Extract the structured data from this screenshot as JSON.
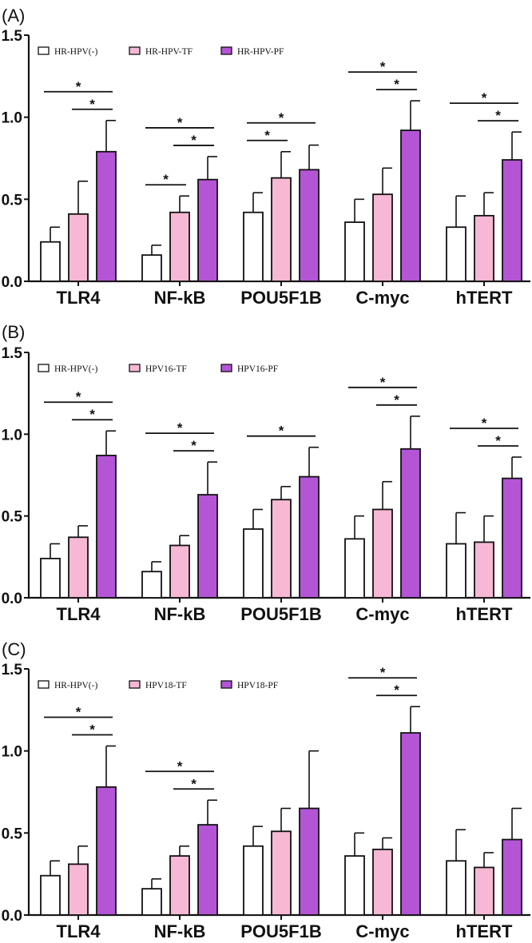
{
  "colors": {
    "bar_fills": [
      "#ffffff",
      "#f6b8d4",
      "#b455d6"
    ],
    "stroke": "#111111"
  },
  "chart_data": [
    {
      "type": "bar",
      "panel_label": "(A)",
      "categories": [
        "TLR4",
        "NF-kB",
        "POU5F1B",
        "C-myc",
        "hTERT"
      ],
      "ylim": [
        0,
        1.5
      ],
      "yticks": [
        "0.0",
        "0.5",
        "1.0",
        "1.5"
      ],
      "legend_position": "top",
      "series": [
        {
          "name": "HR-HPV(-)",
          "values": [
            0.24,
            0.16,
            0.42,
            0.36,
            0.33
          ],
          "errors": [
            0.09,
            0.06,
            0.12,
            0.14,
            0.19
          ]
        },
        {
          "name": "HR-HPV-TF",
          "values": [
            0.41,
            0.42,
            0.63,
            0.53,
            0.4
          ],
          "errors": [
            0.2,
            0.1,
            0.16,
            0.16,
            0.14
          ]
        },
        {
          "name": "HR-HPV-PF",
          "values": [
            0.79,
            0.62,
            0.68,
            0.92,
            0.74
          ],
          "errors": [
            0.19,
            0.14,
            0.15,
            0.18,
            0.17
          ]
        }
      ],
      "significance": [
        {
          "category": 0,
          "from": 0,
          "to": 2,
          "label": "*"
        },
        {
          "category": 0,
          "from": 1,
          "to": 2,
          "label": "*"
        },
        {
          "category": 1,
          "from": 0,
          "to": 2,
          "label": "*"
        },
        {
          "category": 1,
          "from": 0,
          "to": 1,
          "label": "*"
        },
        {
          "category": 1,
          "from": 1,
          "to": 2,
          "label": "*"
        },
        {
          "category": 2,
          "from": 0,
          "to": 2,
          "label": "*"
        },
        {
          "category": 2,
          "from": 0,
          "to": 1,
          "label": "*"
        },
        {
          "category": 3,
          "from": 0,
          "to": 2,
          "label": "*"
        },
        {
          "category": 3,
          "from": 1,
          "to": 2,
          "label": "*"
        },
        {
          "category": 4,
          "from": 0,
          "to": 2,
          "label": "*"
        },
        {
          "category": 4,
          "from": 1,
          "to": 2,
          "label": "*"
        }
      ]
    },
    {
      "type": "bar",
      "panel_label": "(B)",
      "categories": [
        "TLR4",
        "NF-kB",
        "POU5F1B",
        "C-myc",
        "hTERT"
      ],
      "ylim": [
        0,
        1.5
      ],
      "yticks": [
        "0.0",
        "0.5",
        "1.0",
        "1.5"
      ],
      "legend_position": "top",
      "series": [
        {
          "name": "HR-HPV(-)",
          "values": [
            0.24,
            0.16,
            0.42,
            0.36,
            0.33
          ],
          "errors": [
            0.09,
            0.06,
            0.12,
            0.14,
            0.19
          ]
        },
        {
          "name": "HPV16-TF",
          "values": [
            0.37,
            0.32,
            0.6,
            0.54,
            0.34
          ],
          "errors": [
            0.07,
            0.06,
            0.08,
            0.17,
            0.16
          ]
        },
        {
          "name": "HPV16-PF",
          "values": [
            0.87,
            0.63,
            0.74,
            0.91,
            0.73
          ],
          "errors": [
            0.15,
            0.2,
            0.18,
            0.2,
            0.13
          ]
        }
      ],
      "significance": [
        {
          "category": 0,
          "from": 0,
          "to": 2,
          "label": "*"
        },
        {
          "category": 0,
          "from": 1,
          "to": 2,
          "label": "*"
        },
        {
          "category": 1,
          "from": 0,
          "to": 2,
          "label": "*"
        },
        {
          "category": 1,
          "from": 1,
          "to": 2,
          "label": "*"
        },
        {
          "category": 2,
          "from": 0,
          "to": 2,
          "label": "*"
        },
        {
          "category": 3,
          "from": 0,
          "to": 2,
          "label": "*"
        },
        {
          "category": 3,
          "from": 1,
          "to": 2,
          "label": "*"
        },
        {
          "category": 4,
          "from": 0,
          "to": 2,
          "label": "*"
        },
        {
          "category": 4,
          "from": 1,
          "to": 2,
          "label": "*"
        }
      ]
    },
    {
      "type": "bar",
      "panel_label": "(C)",
      "categories": [
        "TLR4",
        "NF-kB",
        "POU5F1B",
        "C-myc",
        "hTERT"
      ],
      "ylim": [
        0,
        1.5
      ],
      "yticks": [
        "0.0",
        "0.5",
        "1.0",
        "1.5"
      ],
      "legend_position": "top",
      "series": [
        {
          "name": "HR-HPV(-)",
          "values": [
            0.24,
            0.16,
            0.42,
            0.36,
            0.33
          ],
          "errors": [
            0.09,
            0.06,
            0.12,
            0.14,
            0.19
          ]
        },
        {
          "name": "HPV18-TF",
          "values": [
            0.31,
            0.36,
            0.51,
            0.4,
            0.29
          ],
          "errors": [
            0.11,
            0.06,
            0.14,
            0.07,
            0.09
          ]
        },
        {
          "name": "HPV18-PF",
          "values": [
            0.78,
            0.55,
            0.65,
            1.11,
            0.46
          ],
          "errors": [
            0.25,
            0.15,
            0.35,
            0.16,
            0.19
          ]
        }
      ],
      "significance": [
        {
          "category": 0,
          "from": 0,
          "to": 2,
          "label": "*"
        },
        {
          "category": 0,
          "from": 1,
          "to": 2,
          "label": "*"
        },
        {
          "category": 1,
          "from": 0,
          "to": 2,
          "label": "*"
        },
        {
          "category": 1,
          "from": 1,
          "to": 2,
          "label": "*"
        },
        {
          "category": 3,
          "from": 0,
          "to": 2,
          "label": "*"
        },
        {
          "category": 3,
          "from": 1,
          "to": 2,
          "label": "*"
        }
      ]
    }
  ]
}
